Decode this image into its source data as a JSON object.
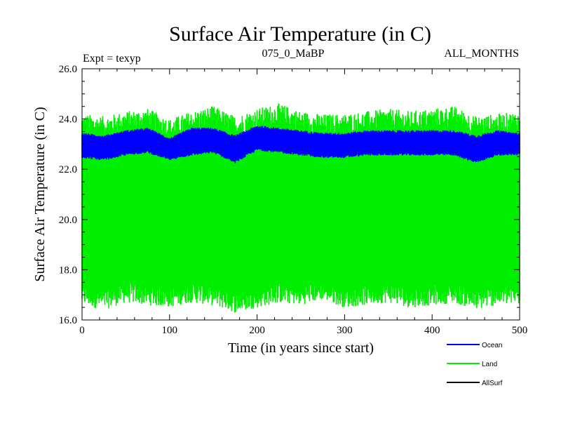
{
  "chart_data": {
    "type": "line",
    "title": "Surface Air Temperature (in C)",
    "subtitle_left": "Expt = texyp",
    "subtitle_center": "075_0_MaBP",
    "subtitle_right": "ALL_MONTHS",
    "xlabel": "Time (in years since start)",
    "ylabel": "Surface Air Temperature (in C)",
    "xlim": [
      0,
      500
    ],
    "ylim": [
      16.0,
      26.0
    ],
    "x_ticks": [
      "0",
      "100",
      "200",
      "300",
      "400",
      "500"
    ],
    "y_ticks": [
      "16.0",
      "18.0",
      "20.0",
      "22.0",
      "24.0",
      "26.0"
    ],
    "grid": false,
    "legend_position": "bottom-right",
    "series": [
      {
        "name": "Land",
        "color": "#00ee00",
        "kind": "seasonal-band",
        "x": [
          0,
          25,
          50,
          75,
          100,
          125,
          150,
          175,
          200,
          225,
          250,
          275,
          300,
          325,
          350,
          375,
          400,
          425,
          450,
          475,
          500
        ],
        "upper": [
          23.8,
          23.7,
          23.9,
          24.0,
          23.6,
          23.9,
          24.1,
          23.7,
          24.0,
          24.2,
          23.9,
          23.8,
          23.8,
          23.9,
          24.0,
          23.9,
          24.0,
          24.1,
          23.7,
          23.8,
          23.9
        ],
        "lower": [
          17.0,
          16.8,
          17.1,
          17.0,
          16.9,
          17.1,
          17.0,
          16.7,
          16.9,
          17.1,
          17.0,
          17.2,
          16.9,
          17.0,
          17.1,
          16.9,
          17.0,
          17.1,
          16.8,
          17.0,
          17.0
        ]
      },
      {
        "name": "Ocean",
        "color": "#0000ff",
        "kind": "seasonal-band",
        "x": [
          0,
          25,
          50,
          75,
          100,
          125,
          150,
          175,
          200,
          225,
          250,
          275,
          300,
          325,
          350,
          375,
          400,
          425,
          450,
          475,
          500
        ],
        "upper": [
          23.4,
          23.3,
          23.5,
          23.6,
          23.2,
          23.6,
          23.6,
          23.3,
          23.7,
          23.6,
          23.5,
          23.4,
          23.4,
          23.5,
          23.5,
          23.5,
          23.5,
          23.5,
          23.3,
          23.5,
          23.4
        ],
        "lower": [
          22.5,
          22.4,
          22.6,
          22.7,
          22.4,
          22.6,
          22.7,
          22.3,
          22.8,
          22.7,
          22.6,
          22.5,
          22.5,
          22.6,
          22.6,
          22.6,
          22.6,
          22.6,
          22.3,
          22.6,
          22.6
        ]
      },
      {
        "name": "AllSurf",
        "color": "#000000",
        "kind": "line",
        "x": [],
        "values": []
      }
    ]
  }
}
